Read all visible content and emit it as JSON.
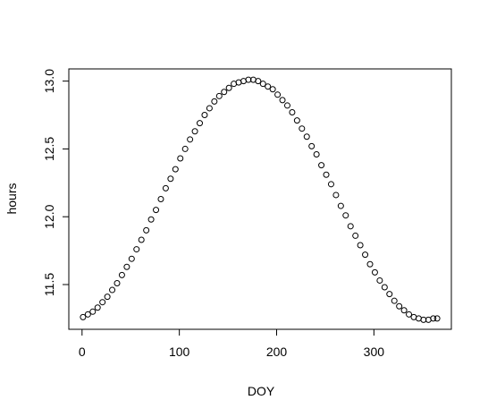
{
  "chart_data": {
    "type": "scatter",
    "xlabel": "DOY",
    "ylabel": "hours",
    "x": [
      1,
      6,
      11,
      16,
      21,
      26,
      31,
      36,
      41,
      46,
      51,
      56,
      61,
      66,
      71,
      76,
      81,
      86,
      91,
      96,
      101,
      106,
      111,
      116,
      121,
      126,
      131,
      136,
      141,
      146,
      151,
      156,
      161,
      166,
      171,
      176,
      181,
      186,
      191,
      196,
      201,
      206,
      211,
      216,
      221,
      226,
      231,
      236,
      241,
      246,
      251,
      256,
      261,
      266,
      271,
      276,
      281,
      286,
      291,
      296,
      301,
      306,
      311,
      316,
      321,
      326,
      331,
      336,
      341,
      346,
      351,
      356,
      361,
      365
    ],
    "series": [
      {
        "color": "#000000",
        "values": [
          11.26,
          11.28,
          11.3,
          11.33,
          11.37,
          11.41,
          11.46,
          11.51,
          11.57,
          11.63,
          11.69,
          11.76,
          11.83,
          11.9,
          11.98,
          12.05,
          12.13,
          12.21,
          12.28,
          12.35,
          12.43,
          12.5,
          12.57,
          12.63,
          12.69,
          12.75,
          12.8,
          12.85,
          12.89,
          12.92,
          12.95,
          12.98,
          12.99,
          13.0,
          13.01,
          13.01,
          13.0,
          12.98,
          12.96,
          12.94,
          12.9,
          12.86,
          12.82,
          12.77,
          12.71,
          12.65,
          12.59,
          12.52,
          12.46,
          12.38,
          12.31,
          12.24,
          12.16,
          12.08,
          12.01,
          11.93,
          11.86,
          11.79,
          11.72,
          11.65,
          11.59,
          11.53,
          11.48,
          11.43,
          11.38,
          11.34,
          11.31,
          11.28,
          11.26,
          11.25,
          11.24,
          11.24,
          11.25,
          11.25
        ]
      }
    ],
    "xlim": [
      -13.6,
      379.6
    ],
    "ylim": [
      11.17,
      13.09
    ],
    "xticks": [
      0,
      100,
      200,
      300
    ],
    "yticks": [
      {
        "value": 11.5,
        "label": "11.5"
      },
      {
        "value": 12,
        "label": "12.0"
      },
      {
        "value": 12.5,
        "label": "12.5"
      },
      {
        "value": 13,
        "label": "13.0"
      }
    ]
  }
}
